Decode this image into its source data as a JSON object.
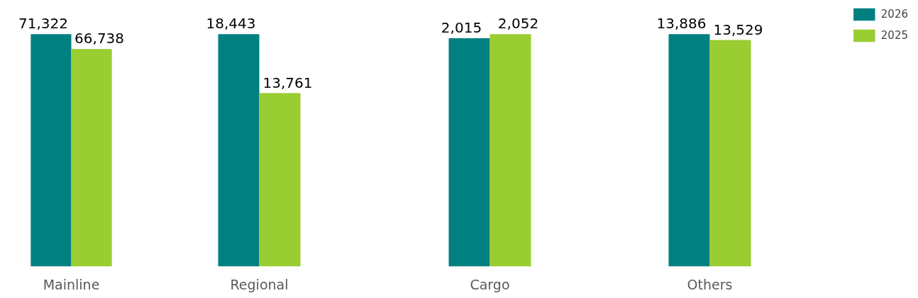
{
  "chart_data": [
    {
      "type": "bar",
      "categories": [
        "Mainline"
      ],
      "series": [
        {
          "color": "#008080",
          "values": [
            71322
          ],
          "value_labels": [
            "71,322"
          ]
        },
        {
          "color": "#9acd32",
          "values": [
            66738
          ],
          "value_labels": [
            "66,738"
          ]
        }
      ]
    },
    {
      "type": "bar",
      "categories": [
        "Regional"
      ],
      "series": [
        {
          "color": "#008080",
          "values": [
            18443
          ],
          "value_labels": [
            "18,443"
          ]
        },
        {
          "color": "#9acd32",
          "values": [
            13761
          ],
          "value_labels": [
            "13,761"
          ]
        }
      ]
    },
    {
      "type": "bar",
      "categories": [
        "Cargo"
      ],
      "series": [
        {
          "color": "#008080",
          "values": [
            2015
          ],
          "value_labels": [
            "2,015"
          ]
        },
        {
          "color": "#9acd32",
          "values": [
            2052
          ],
          "value_labels": [
            "2,052"
          ]
        }
      ]
    },
    {
      "type": "bar",
      "categories": [
        "Others"
      ],
      "legend": "right",
      "series": [
        {
          "name": "2026",
          "color": "#008080",
          "values": [
            13886
          ],
          "value_labels": [
            "13,886"
          ]
        },
        {
          "name": "2025",
          "color": "#9acd32",
          "values": [
            13529
          ],
          "value_labels": [
            "13,529"
          ]
        }
      ]
    }
  ]
}
